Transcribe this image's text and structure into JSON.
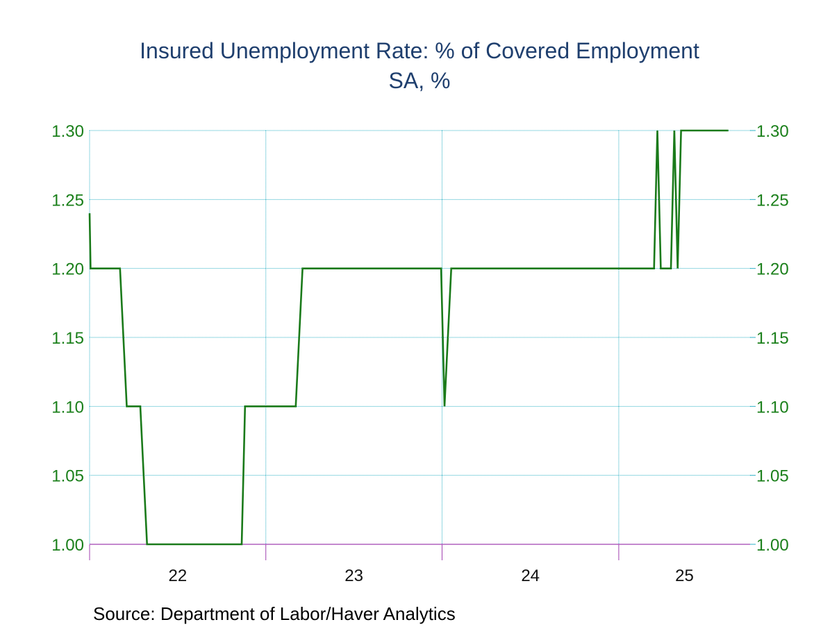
{
  "chart_data": {
    "type": "line",
    "title": "Insured Unemployment Rate: % of Covered Employment",
    "subtitle": "SA, %",
    "source": "Source:  Department of Labor/Haver Analytics",
    "xlabel": "",
    "ylabel": "",
    "ylim": [
      1.0,
      1.3
    ],
    "y_ticks": [
      "1.00",
      "1.05",
      "1.10",
      "1.15",
      "1.20",
      "1.25",
      "1.30"
    ],
    "x_ticks": [
      "22",
      "23",
      "24",
      "25"
    ],
    "x_domain": [
      "2022-01-01",
      "2025-09-30"
    ],
    "year_boundaries": [
      "2023-01-01",
      "2024-01-01",
      "2025-01-01"
    ],
    "grid": true,
    "line_color": "#1a7a1a",
    "grid_color": "#2ab0c4",
    "axis_color": "#a040b0",
    "series": [
      {
        "name": "Insured Unemployment Rate",
        "points": [
          [
            "2022-01-01",
            1.24
          ],
          [
            "2022-01-03",
            1.2
          ],
          [
            "2022-03-05",
            1.2
          ],
          [
            "2022-03-19",
            1.1
          ],
          [
            "2022-04-16",
            1.1
          ],
          [
            "2022-04-30",
            1.0
          ],
          [
            "2022-11-12",
            1.0
          ],
          [
            "2022-11-19",
            1.1
          ],
          [
            "2023-03-04",
            1.1
          ],
          [
            "2023-03-18",
            1.2
          ],
          [
            "2023-12-30",
            1.2
          ],
          [
            "2024-01-06",
            1.1
          ],
          [
            "2024-01-20",
            1.2
          ],
          [
            "2025-03-15",
            1.2
          ],
          [
            "2025-03-22",
            1.3
          ],
          [
            "2025-03-29",
            1.2
          ],
          [
            "2025-04-19",
            1.2
          ],
          [
            "2025-04-26",
            1.3
          ],
          [
            "2025-05-03",
            1.2
          ],
          [
            "2025-05-10",
            1.3
          ],
          [
            "2025-08-16",
            1.3
          ]
        ]
      }
    ]
  }
}
